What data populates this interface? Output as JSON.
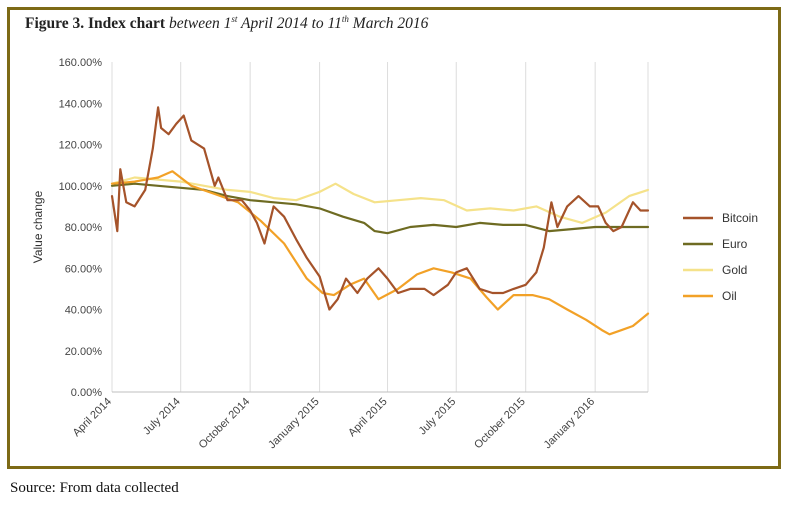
{
  "figure": {
    "title_bold": "Figure 3. Index chart",
    "title_italic_a": "between 1",
    "title_sup_a": "st",
    "title_italic_b": " April 2014 to 11",
    "title_sup_b": "th",
    "title_italic_c": " March 2016",
    "source": "Source: From data collected"
  },
  "colors": {
    "frame": "#7d6a16",
    "Bitcoin": "#a5532a",
    "Euro": "#6e6b22",
    "Gold": "#f5e28a",
    "Oil": "#f2a127"
  },
  "chart_data": {
    "type": "line",
    "ylabel": "Value change",
    "xlabel": "",
    "ylim": [
      0,
      160
    ],
    "yticks": [
      0,
      20,
      40,
      60,
      80,
      100,
      120,
      140,
      160
    ],
    "ytick_labels": [
      "0.00%",
      "20.00%",
      "40.00%",
      "60.00%",
      "80.00%",
      "100.00%",
      "120.00%",
      "140.00%",
      "160.00%"
    ],
    "xlim": [
      "2014-04-01",
      "2016-03-11"
    ],
    "xticks": [
      "2014-04-01",
      "2014-07-01",
      "2014-10-01",
      "2015-01-01",
      "2015-04-01",
      "2015-07-01",
      "2015-10-01",
      "2016-01-01"
    ],
    "xtick_labels": [
      "April 2014",
      "July 2014",
      "October 2014",
      "January 2015",
      "April 2015",
      "July 2015",
      "October 2015",
      "January 2016"
    ],
    "grid": "vertical",
    "legend": "right",
    "series": [
      {
        "name": "Bitcoin",
        "x": [
          "2014-04-01",
          "2014-04-08",
          "2014-04-12",
          "2014-04-20",
          "2014-05-01",
          "2014-05-15",
          "2014-05-25",
          "2014-06-01",
          "2014-06-05",
          "2014-06-15",
          "2014-06-25",
          "2014-07-05",
          "2014-07-15",
          "2014-08-01",
          "2014-08-15",
          "2014-08-20",
          "2014-09-01",
          "2014-09-20",
          "2014-10-01",
          "2014-10-10",
          "2014-10-20",
          "2014-11-01",
          "2014-11-15",
          "2014-12-01",
          "2014-12-15",
          "2015-01-01",
          "2015-01-14",
          "2015-01-25",
          "2015-02-05",
          "2015-02-20",
          "2015-03-05",
          "2015-03-20",
          "2015-04-01",
          "2015-04-15",
          "2015-05-01",
          "2015-05-20",
          "2015-06-01",
          "2015-06-20",
          "2015-07-01",
          "2015-07-15",
          "2015-08-01",
          "2015-08-18",
          "2015-09-01",
          "2015-09-15",
          "2015-10-01",
          "2015-10-15",
          "2015-10-25",
          "2015-11-04",
          "2015-11-12",
          "2015-11-25",
          "2015-12-10",
          "2015-12-25",
          "2016-01-05",
          "2016-01-15",
          "2016-01-25",
          "2016-02-05",
          "2016-02-20",
          "2016-03-01",
          "2016-03-11"
        ],
        "values": [
          95,
          78,
          108,
          92,
          90,
          98,
          118,
          138,
          128,
          125,
          130,
          134,
          122,
          118,
          100,
          104,
          93,
          93,
          88,
          82,
          72,
          90,
          85,
          74,
          65,
          56,
          40,
          45,
          55,
          48,
          55,
          60,
          55,
          48,
          50,
          50,
          47,
          52,
          58,
          60,
          50,
          48,
          48,
          50,
          52,
          58,
          70,
          92,
          80,
          90,
          95,
          90,
          90,
          82,
          78,
          80,
          92,
          88,
          88
        ]
      },
      {
        "name": "Euro",
        "x": [
          "2014-04-01",
          "2014-05-01",
          "2014-06-01",
          "2014-07-01",
          "2014-08-01",
          "2014-09-01",
          "2014-10-01",
          "2014-11-01",
          "2014-12-01",
          "2015-01-01",
          "2015-02-01",
          "2015-03-01",
          "2015-03-15",
          "2015-04-01",
          "2015-05-01",
          "2015-06-01",
          "2015-07-01",
          "2015-08-01",
          "2015-09-01",
          "2015-10-01",
          "2015-11-01",
          "2015-12-01",
          "2016-01-01",
          "2016-02-01",
          "2016-03-11"
        ],
        "values": [
          100,
          101,
          100,
          99,
          98,
          95,
          93,
          92,
          91,
          89,
          85,
          82,
          78,
          77,
          80,
          81,
          80,
          82,
          81,
          81,
          78,
          79,
          80,
          80,
          80
        ]
      },
      {
        "name": "Gold",
        "x": [
          "2014-04-01",
          "2014-05-01",
          "2014-06-01",
          "2014-07-01",
          "2014-08-01",
          "2014-09-01",
          "2014-10-01",
          "2014-11-01",
          "2014-12-01",
          "2015-01-01",
          "2015-01-22",
          "2015-02-15",
          "2015-03-15",
          "2015-04-15",
          "2015-05-15",
          "2015-06-15",
          "2015-07-15",
          "2015-08-15",
          "2015-09-15",
          "2015-10-15",
          "2015-11-15",
          "2015-12-15",
          "2016-01-15",
          "2016-02-15",
          "2016-03-11"
        ],
        "values": [
          101,
          104,
          103,
          102,
          100,
          98,
          97,
          94,
          93,
          97,
          101,
          96,
          92,
          93,
          94,
          93,
          88,
          89,
          88,
          90,
          85,
          82,
          87,
          95,
          98
        ]
      },
      {
        "name": "Oil",
        "x": [
          "2014-04-01",
          "2014-05-01",
          "2014-06-01",
          "2014-06-20",
          "2014-07-15",
          "2014-08-15",
          "2014-09-15",
          "2014-10-15",
          "2014-11-15",
          "2014-12-15",
          "2015-01-05",
          "2015-01-20",
          "2015-02-10",
          "2015-03-01",
          "2015-03-20",
          "2015-04-15",
          "2015-05-10",
          "2015-06-01",
          "2015-06-25",
          "2015-07-20",
          "2015-08-10",
          "2015-08-25",
          "2015-09-15",
          "2015-10-10",
          "2015-11-01",
          "2015-11-25",
          "2015-12-20",
          "2016-01-10",
          "2016-01-20",
          "2016-02-05",
          "2016-02-20",
          "2016-03-11"
        ],
        "values": [
          101,
          102,
          104,
          107,
          100,
          96,
          92,
          83,
          72,
          55,
          48,
          47,
          52,
          55,
          45,
          50,
          57,
          60,
          58,
          55,
          46,
          40,
          47,
          47,
          45,
          40,
          35,
          30,
          28,
          30,
          32,
          38
        ]
      }
    ]
  }
}
